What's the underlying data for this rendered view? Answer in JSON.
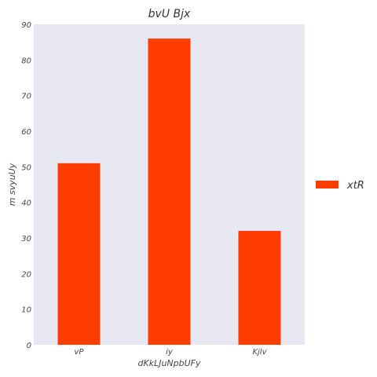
{
  "chart_data": {
    "type": "bar",
    "title": "bvU Bjx",
    "xlabel": "dKkLJuNpbUFy",
    "ylabel": "m svyuUy",
    "categories": [
      "vP",
      "iy",
      "Kjlv"
    ],
    "series": [
      {
        "name": "xtR",
        "values": [
          51,
          86,
          32
        ],
        "color": "#ff3d00"
      }
    ],
    "ylim": [
      0,
      90
    ],
    "yticks": [
      0,
      10,
      20,
      30,
      40,
      50,
      60,
      70,
      80,
      90
    ],
    "grid": false,
    "legend": "right",
    "background": "#e8e8f2"
  }
}
